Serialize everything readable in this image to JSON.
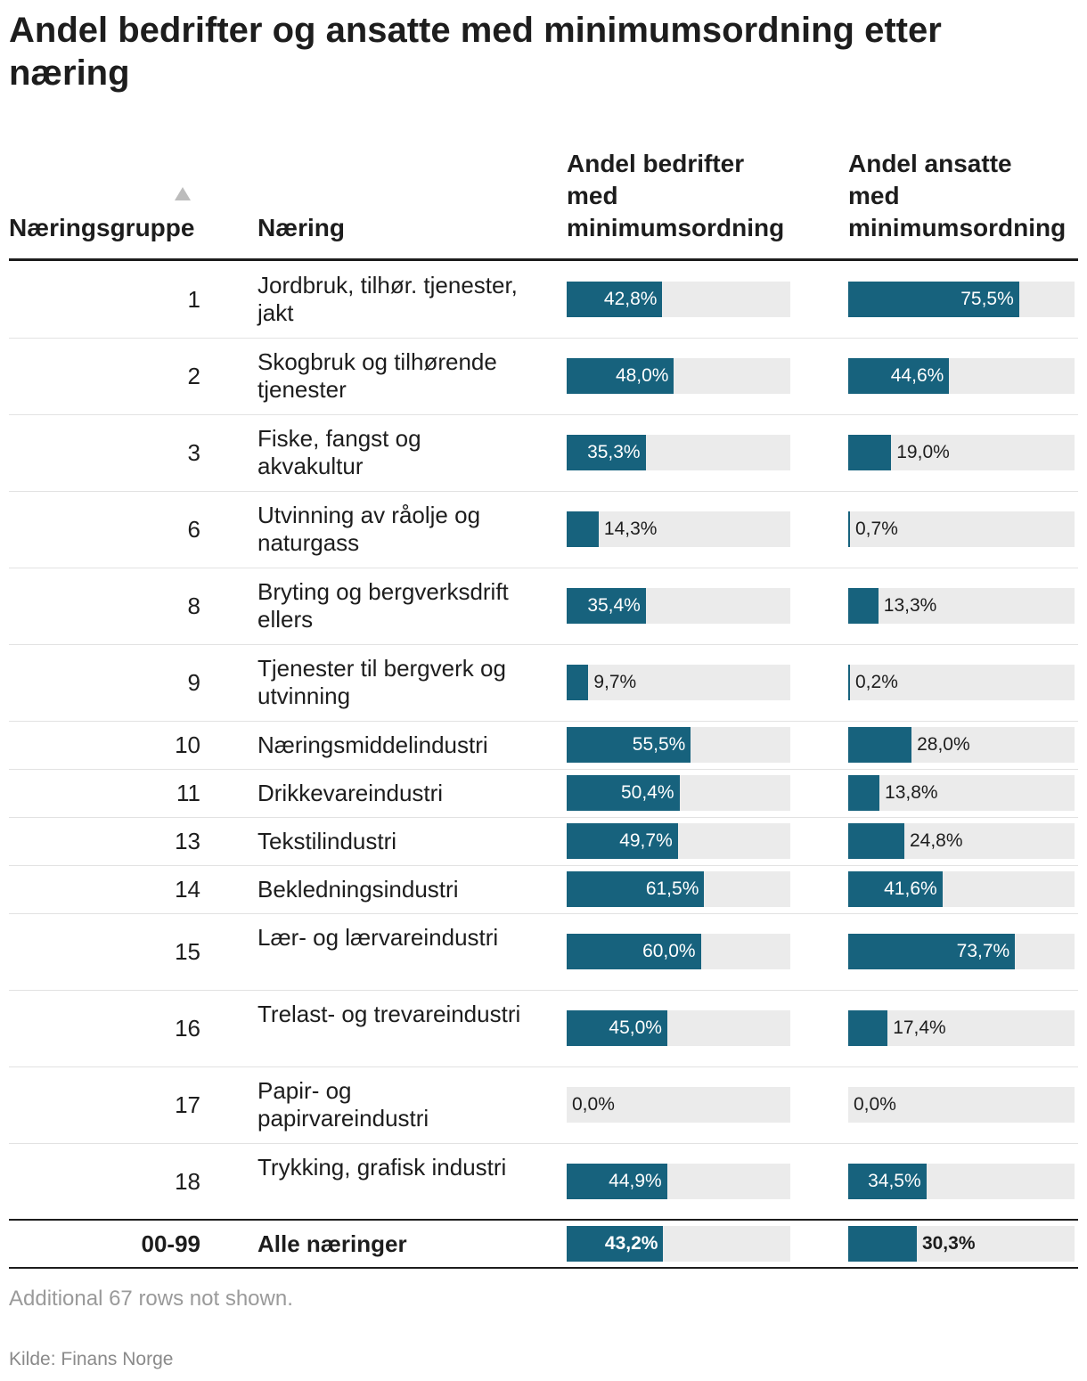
{
  "title": "Andel bedrifter og ansatte med minimumsordning etter næring",
  "columns": {
    "group": "Næringsgruppe",
    "name": "Næring",
    "companies": [
      "Andel bedrifter",
      "med",
      "minimumsordning"
    ],
    "employees": [
      "Andel ansatte",
      "med",
      "minimumsordning"
    ]
  },
  "chart_data": {
    "type": "table",
    "title": "Andel bedrifter og ansatte med minimumsordning etter næring",
    "value_range": [
      0,
      100
    ],
    "unit": "%",
    "rows": [
      {
        "group": "1",
        "name": "Jordbruk, tilhør. tjenester, jakt",
        "companies": 42.8,
        "companies_label": "42,8%",
        "employees": 75.5,
        "employees_label": "75,5%"
      },
      {
        "group": "2",
        "name": "Skogbruk og tilhørende tjenester",
        "companies": 48.0,
        "companies_label": "48,0%",
        "employees": 44.6,
        "employees_label": "44,6%"
      },
      {
        "group": "3",
        "name": "Fiske, fangst og akvakultur",
        "companies": 35.3,
        "companies_label": "35,3%",
        "employees": 19.0,
        "employees_label": "19,0%"
      },
      {
        "group": "6",
        "name": "Utvinning av råolje og naturgass",
        "companies": 14.3,
        "companies_label": "14,3%",
        "employees": 0.7,
        "employees_label": "0,7%"
      },
      {
        "group": "8",
        "name": "Bryting og bergverksdrift ellers",
        "companies": 35.4,
        "companies_label": "35,4%",
        "employees": 13.3,
        "employees_label": "13,3%"
      },
      {
        "group": "9",
        "name": "Tjenester til bergverk og utvinning",
        "companies": 9.7,
        "companies_label": "9,7%",
        "employees": 0.2,
        "employees_label": "0,2%"
      },
      {
        "group": "10",
        "name": "Næringsmiddelindustri",
        "companies": 55.5,
        "companies_label": "55,5%",
        "employees": 28.0,
        "employees_label": "28,0%"
      },
      {
        "group": "11",
        "name": "Drikkevareindustri",
        "companies": 50.4,
        "companies_label": "50,4%",
        "employees": 13.8,
        "employees_label": "13,8%"
      },
      {
        "group": "13",
        "name": "Tekstilindustri",
        "companies": 49.7,
        "companies_label": "49,7%",
        "employees": 24.8,
        "employees_label": "24,8%"
      },
      {
        "group": "14",
        "name": "Bekledningsindustri",
        "companies": 61.5,
        "companies_label": "61,5%",
        "employees": 41.6,
        "employees_label": "41,6%"
      },
      {
        "group": "15",
        "name": "Lær- og lærvareindustri",
        "companies": 60.0,
        "companies_label": "60,0%",
        "employees": 73.7,
        "employees_label": "73,7%"
      },
      {
        "group": "16",
        "name": "Trelast- og trevareindustri",
        "companies": 45.0,
        "companies_label": "45,0%",
        "employees": 17.4,
        "employees_label": "17,4%"
      },
      {
        "group": "17",
        "name": "Papir- og papirvareindustri",
        "companies": 0.0,
        "companies_label": "0,0%",
        "employees": 0.0,
        "employees_label": "0,0%"
      },
      {
        "group": "18",
        "name": "Trykking, grafisk industri",
        "companies": 44.9,
        "companies_label": "44,9%",
        "employees": 34.5,
        "employees_label": "34,5%"
      }
    ],
    "total": {
      "group": "00-99",
      "name": "Alle næringer",
      "companies": 43.2,
      "companies_label": "43,2%",
      "employees": 30.3,
      "employees_label": "30,3%"
    }
  },
  "note": "Additional 67 rows not shown.",
  "source": "Kilde: Finans Norge",
  "colors": {
    "bar": "#17627d",
    "track": "#ebebeb"
  }
}
